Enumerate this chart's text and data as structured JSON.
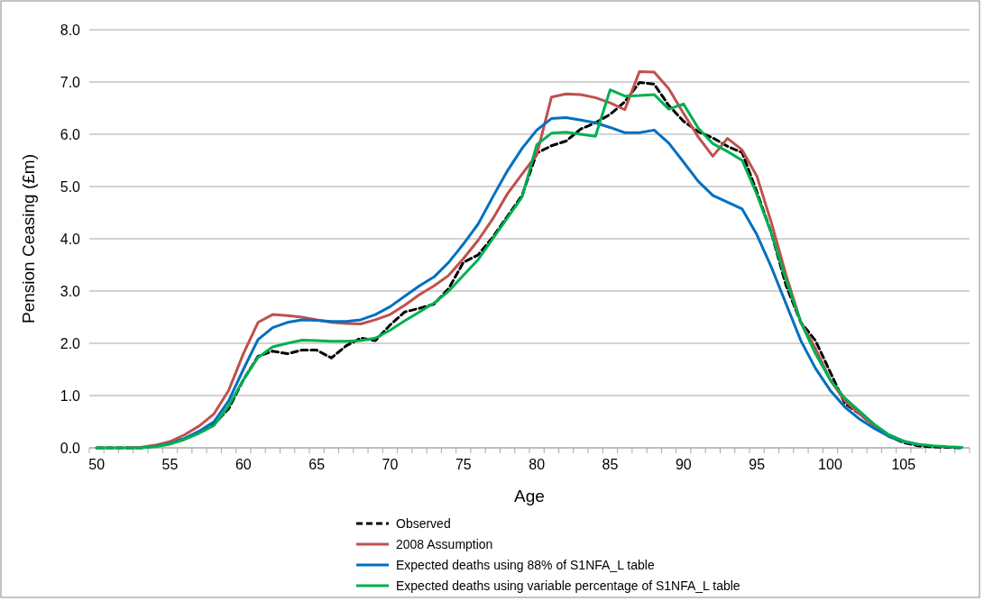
{
  "chart_data": {
    "type": "line",
    "xlabel": "Age",
    "ylabel": "Pension Ceasing (£m)",
    "categories": [
      "50",
      null,
      null,
      null,
      null,
      "55",
      null,
      null,
      null,
      null,
      "60",
      null,
      null,
      null,
      null,
      "65",
      null,
      null,
      null,
      null,
      "70",
      null,
      null,
      null,
      null,
      "75",
      null,
      null,
      null,
      null,
      "80",
      null,
      null,
      null,
      null,
      "85",
      null,
      null,
      null,
      null,
      "90",
      null,
      null,
      null,
      null,
      "95",
      null,
      null,
      null,
      null,
      "100",
      null,
      null,
      null,
      null,
      "105",
      null,
      null,
      null,
      null
    ],
    "ylim": [
      0,
      8
    ],
    "yticks": [
      {
        "value": 0,
        "label": "0.0"
      },
      {
        "value": 1,
        "label": "1.0"
      },
      {
        "value": 2,
        "label": "2.0"
      },
      {
        "value": 3,
        "label": "3.0"
      },
      {
        "value": 4,
        "label": "4.0"
      },
      {
        "value": 5,
        "label": "5.0"
      },
      {
        "value": 6,
        "label": "6.0"
      },
      {
        "value": 7,
        "label": "7.0"
      },
      {
        "value": 8,
        "label": "8.0"
      }
    ],
    "grid": "y",
    "legend": "bottom",
    "marker": "none",
    "series": [
      {
        "name": "Observed",
        "color": "#000000",
        "line_style": "dashed",
        "values": [
          0,
          0,
          0,
          0,
          0.03,
          0.08,
          0.18,
          0.3,
          0.45,
          0.75,
          1.3,
          1.75,
          1.85,
          1.8,
          1.87,
          1.87,
          1.72,
          1.95,
          2.1,
          2.05,
          2.35,
          2.6,
          2.67,
          2.75,
          3.05,
          3.55,
          3.69,
          4.03,
          4.43,
          4.83,
          5.64,
          5.78,
          5.87,
          6.1,
          6.22,
          6.38,
          6.62,
          6.99,
          6.96,
          6.55,
          6.25,
          6.05,
          5.93,
          5.77,
          5.65,
          4.9,
          4.1,
          3.1,
          2.4,
          2.05,
          1.45,
          0.85,
          0.65,
          0.42,
          0.22,
          0.1,
          0.04,
          0.02,
          0.01,
          0
        ]
      },
      {
        "name": "2008 Assumption",
        "color": "#c0504d",
        "line_style": "solid",
        "values": [
          null,
          null,
          0,
          0.01,
          0.05,
          0.12,
          0.25,
          0.42,
          0.65,
          1.1,
          1.8,
          2.4,
          2.55,
          2.53,
          2.5,
          2.45,
          2.4,
          2.38,
          2.37,
          2.45,
          2.55,
          2.73,
          2.93,
          3.1,
          3.3,
          3.62,
          3.97,
          4.38,
          4.86,
          5.24,
          5.61,
          6.71,
          6.77,
          6.76,
          6.7,
          6.6,
          6.47,
          7.2,
          7.19,
          6.87,
          6.4,
          5.95,
          5.58,
          5.92,
          5.7,
          5.2,
          4.3,
          3.3,
          2.4,
          1.9,
          1.3,
          0.9,
          0.65,
          0.42,
          0.22,
          null,
          null,
          null,
          null,
          null
        ]
      },
      {
        "name": "Expected deaths using 88% of S1NFA_L table",
        "color": "#0070c0",
        "line_style": "solid",
        "values": [
          null,
          null,
          null,
          null,
          0.03,
          0.08,
          0.18,
          0.32,
          0.5,
          0.9,
          1.5,
          2.07,
          2.3,
          2.4,
          2.45,
          2.44,
          2.42,
          2.42,
          2.45,
          2.55,
          2.7,
          2.9,
          3.1,
          3.27,
          3.55,
          3.9,
          4.28,
          4.8,
          5.3,
          5.73,
          6.08,
          6.3,
          6.32,
          6.27,
          6.22,
          6.13,
          6.03,
          6.03,
          6.08,
          5.83,
          5.47,
          5.1,
          4.83,
          4.7,
          4.57,
          4.08,
          3.45,
          2.75,
          2.05,
          1.52,
          1.1,
          0.78,
          0.55,
          0.37,
          0.22,
          0.12,
          0.06,
          null,
          null,
          null
        ]
      },
      {
        "name": "Expected deaths using variable percentage of S1NFA_L table",
        "color": "#00b050",
        "line_style": "solid",
        "values": [
          0,
          0,
          0,
          0,
          0.02,
          0.07,
          0.16,
          0.28,
          0.43,
          0.8,
          1.3,
          1.73,
          1.93,
          2.0,
          2.06,
          2.05,
          2.04,
          2.04,
          2.05,
          2.1,
          2.25,
          2.43,
          2.6,
          2.77,
          3.0,
          3.3,
          3.6,
          4.0,
          4.4,
          4.8,
          5.8,
          6.02,
          6.04,
          6.0,
          5.96,
          6.85,
          6.73,
          6.74,
          6.76,
          6.48,
          6.58,
          6.12,
          5.82,
          5.67,
          5.5,
          4.85,
          4.1,
          3.2,
          2.4,
          1.8,
          1.3,
          0.95,
          0.7,
          0.45,
          0.25,
          0.13,
          0.07,
          0.04,
          0.02,
          0.01
        ]
      }
    ]
  }
}
